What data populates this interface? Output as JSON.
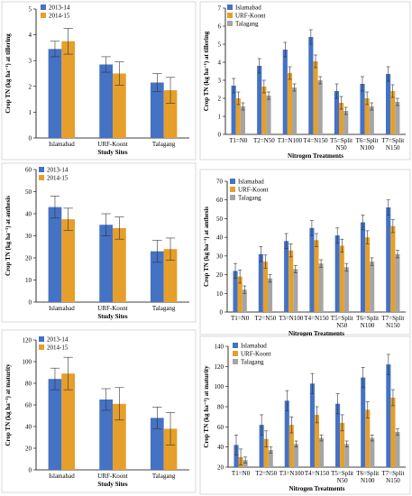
{
  "colors": {
    "blue": "#4472C4",
    "orange": "#E69F2A",
    "gray": "#A5A5A5"
  },
  "chart_data": [
    {
      "type": "bar",
      "title": "",
      "xlabel": "Study Sites",
      "ylabel": "Crop TN (kg ha⁻¹) at tillering",
      "ylim": [
        0,
        5
      ],
      "yticks": [
        0,
        1,
        2,
        3,
        4,
        5
      ],
      "categories": [
        "Islamabad",
        "URF-Koont",
        "Talagang"
      ],
      "series": [
        {
          "name": "2013-14",
          "color": "#4472C4",
          "values": [
            3.45,
            2.85,
            2.15
          ],
          "errors": [
            0.3,
            0.3,
            0.35
          ]
        },
        {
          "name": "2014-15",
          "color": "#E69F2A",
          "values": [
            3.75,
            2.5,
            1.85
          ],
          "errors": [
            0.5,
            0.45,
            0.5
          ]
        }
      ],
      "legend": "top-left",
      "grid": false
    },
    {
      "type": "bar",
      "title": "",
      "xlabel": "Nitrogen Treatments",
      "ylabel": "Crop TN (kg ha⁻¹) at tillering",
      "ylim": [
        0,
        7
      ],
      "yticks": [
        0,
        1,
        2,
        3,
        4,
        5,
        6,
        7
      ],
      "categories": [
        "T1=N0",
        "T2=N50",
        "T3=N100",
        "T4=N150",
        "T5=Split N50",
        "T6=Split N100",
        "T7=Split N150"
      ],
      "series": [
        {
          "name": "Islamabad",
          "color": "#4472C4",
          "values": [
            2.7,
            3.8,
            4.7,
            5.4,
            2.4,
            2.8,
            3.35
          ],
          "errors": [
            0.4,
            0.4,
            0.4,
            0.4,
            0.4,
            0.4,
            0.4
          ]
        },
        {
          "name": "URF-Koont",
          "color": "#E69F2A",
          "values": [
            2.0,
            2.65,
            3.4,
            4.05,
            1.75,
            2.0,
            2.4
          ],
          "errors": [
            0.35,
            0.35,
            0.35,
            0.35,
            0.35,
            0.35,
            0.35
          ]
        },
        {
          "name": "Talagang",
          "color": "#A5A5A5",
          "values": [
            1.55,
            2.15,
            2.6,
            3.0,
            1.3,
            1.55,
            1.8
          ],
          "errors": [
            0.2,
            0.2,
            0.2,
            0.2,
            0.2,
            0.2,
            0.2
          ]
        }
      ],
      "legend": "top-left",
      "grid": false
    },
    {
      "type": "bar",
      "title": "",
      "xlabel": "Study Sites",
      "ylabel": "Crop TN (kg ha⁻¹) at anthesis",
      "ylim": [
        0,
        60
      ],
      "yticks": [
        0,
        10,
        20,
        30,
        40,
        50,
        60
      ],
      "categories": [
        "Islamabad",
        "URF-Koont",
        "Talagang"
      ],
      "series": [
        {
          "name": "2013-14",
          "color": "#4472C4",
          "values": [
            43,
            35,
            23
          ],
          "errors": [
            5,
            5,
            5
          ]
        },
        {
          "name": "2014-15",
          "color": "#E69F2A",
          "values": [
            37.5,
            33.5,
            24
          ],
          "errors": [
            5,
            5,
            5
          ]
        }
      ],
      "legend": "top-left",
      "grid": false
    },
    {
      "type": "bar",
      "title": "",
      "xlabel": "Nitrogen Treatments",
      "ylabel": "Crop TN (kg ha⁻¹) at anthesis",
      "ylim": [
        0,
        70
      ],
      "yticks": [
        0,
        10,
        20,
        30,
        40,
        50,
        60,
        70
      ],
      "categories": [
        "T1=N0",
        "T2=N50",
        "T3=N100",
        "T4=N150",
        "T5=Split N50",
        "T6=Split N100",
        "T7=Split N150"
      ],
      "series": [
        {
          "name": "Islamabad",
          "color": "#4472C4",
          "values": [
            22,
            31,
            38,
            45,
            41,
            48,
            56
          ],
          "errors": [
            4,
            4,
            4,
            4,
            4,
            4,
            4
          ]
        },
        {
          "name": "URF-Koont",
          "color": "#E69F2A",
          "values": [
            19,
            27,
            33,
            38.5,
            35.5,
            40,
            46
          ],
          "errors": [
            3.5,
            3.5,
            3.5,
            3.5,
            3.5,
            3.5,
            3.5
          ]
        },
        {
          "name": "Talagang",
          "color": "#A5A5A5",
          "values": [
            12,
            18,
            23,
            26,
            24,
            27,
            31
          ],
          "errors": [
            2,
            2,
            2,
            2,
            2,
            2,
            2
          ]
        }
      ],
      "legend": "top-left",
      "grid": false
    },
    {
      "type": "bar",
      "title": "",
      "xlabel": "Study Sites",
      "ylabel": "Crop TN (kg ha⁻¹) at maturity",
      "ylim": [
        0,
        120
      ],
      "yticks": [
        0,
        20,
        40,
        60,
        80,
        100,
        120
      ],
      "categories": [
        "Islamabad",
        "URF-Koont",
        "Talagang"
      ],
      "series": [
        {
          "name": "2013-14",
          "color": "#4472C4",
          "values": [
            84,
            65,
            48
          ],
          "errors": [
            10,
            10,
            10
          ]
        },
        {
          "name": "2014-15",
          "color": "#E69F2A",
          "values": [
            89,
            61,
            38
          ],
          "errors": [
            15,
            15,
            15
          ]
        }
      ],
      "legend": "top-left",
      "grid": false
    },
    {
      "type": "bar",
      "title": "",
      "xlabel": "Nitrogen Treatments",
      "ylabel": "Crop TN (kg ha⁻¹) at maturity",
      "ylim": [
        20,
        140
      ],
      "yticks": [
        20,
        40,
        60,
        80,
        100,
        120,
        140
      ],
      "categories": [
        "T1=N0",
        "T2=N50",
        "T3=N100",
        "T4=N150",
        "T5=Split N50",
        "T6=Split N100",
        "T7=Split N150"
      ],
      "series": [
        {
          "name": "Islamabad",
          "color": "#4472C4",
          "values": [
            42,
            62,
            86,
            103,
            83,
            109,
            122
          ],
          "errors": [
            10,
            10,
            10,
            10,
            10,
            10,
            10
          ]
        },
        {
          "name": "URF-Koont",
          "color": "#E69F2A",
          "values": [
            30,
            48,
            62,
            72,
            64,
            77,
            89
          ],
          "errors": [
            8,
            8,
            8,
            8,
            8,
            8,
            8
          ]
        },
        {
          "name": "Talagang",
          "color": "#A5A5A5",
          "values": [
            27,
            37,
            43,
            49,
            43,
            49,
            55
          ],
          "errors": [
            3,
            3,
            3,
            3,
            3,
            3,
            3
          ]
        }
      ],
      "legend": "top-left",
      "grid": false
    }
  ]
}
